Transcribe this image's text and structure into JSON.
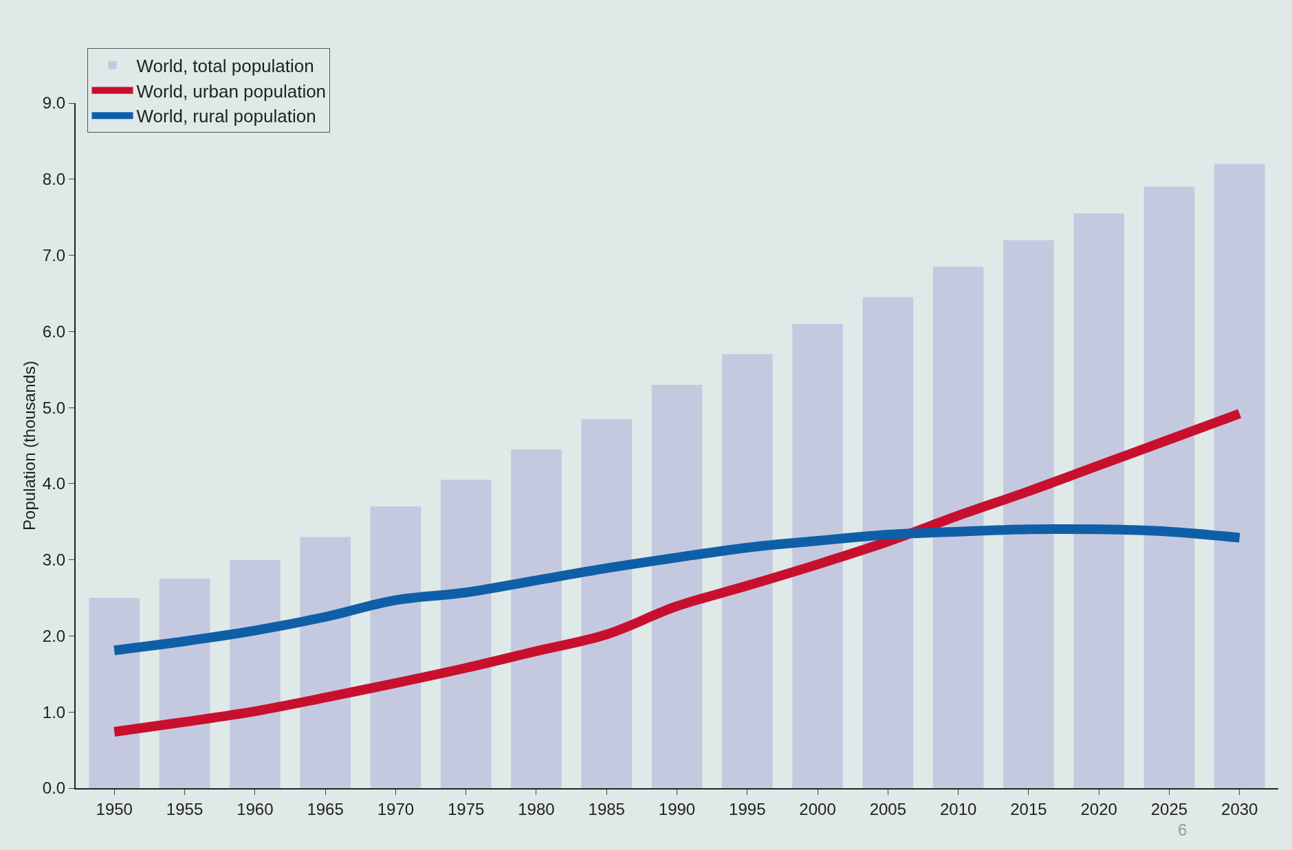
{
  "chart_data": {
    "type": "bar",
    "ylabel": "Population (thousands)",
    "categories": [
      "1950",
      "1955",
      "1960",
      "1965",
      "1970",
      "1975",
      "1980",
      "1985",
      "1990",
      "1995",
      "2000",
      "2005",
      "2010",
      "2015",
      "2020",
      "2025",
      "2030"
    ],
    "series": [
      {
        "name": "World, total population",
        "color": "#c5c9df",
        "values": [
          2.5,
          2.75,
          3.0,
          3.3,
          3.7,
          4.05,
          4.45,
          4.85,
          5.3,
          5.7,
          6.1,
          6.45,
          6.85,
          7.2,
          7.55,
          7.9,
          8.2
        ]
      },
      {
        "name": "World, urban population",
        "type": "line",
        "color": "#c8102e",
        "values": [
          0.74,
          0.87,
          1.01,
          1.19,
          1.38,
          1.58,
          1.8,
          2.02,
          2.39,
          2.66,
          2.94,
          3.24,
          3.58,
          3.9,
          4.24,
          4.58,
          4.92
        ]
      },
      {
        "name": "World, rural population",
        "type": "line",
        "color": "#0f5fa8",
        "values": [
          1.81,
          1.93,
          2.07,
          2.25,
          2.47,
          2.57,
          2.73,
          2.89,
          3.03,
          3.16,
          3.25,
          3.33,
          3.37,
          3.4,
          3.4,
          3.37,
          3.29
        ]
      }
    ],
    "ylim": [
      0,
      9
    ],
    "yticks": [
      {
        "value": 0,
        "label": "0.0"
      },
      {
        "value": 1,
        "label": "1.0"
      },
      {
        "value": 2,
        "label": "2.0"
      },
      {
        "value": 3,
        "label": "3.0"
      },
      {
        "value": 4,
        "label": "4.0"
      },
      {
        "value": 5,
        "label": "5.0"
      },
      {
        "value": 6,
        "label": "6.0"
      },
      {
        "value": 7,
        "label": "7.0"
      },
      {
        "value": 8,
        "label": "8.0"
      },
      {
        "value": 9,
        "label": "9.0"
      }
    ],
    "grid": false,
    "legend": "top left",
    "marker": "none",
    "line_style": "solid",
    "annotations": [
      "6"
    ]
  }
}
